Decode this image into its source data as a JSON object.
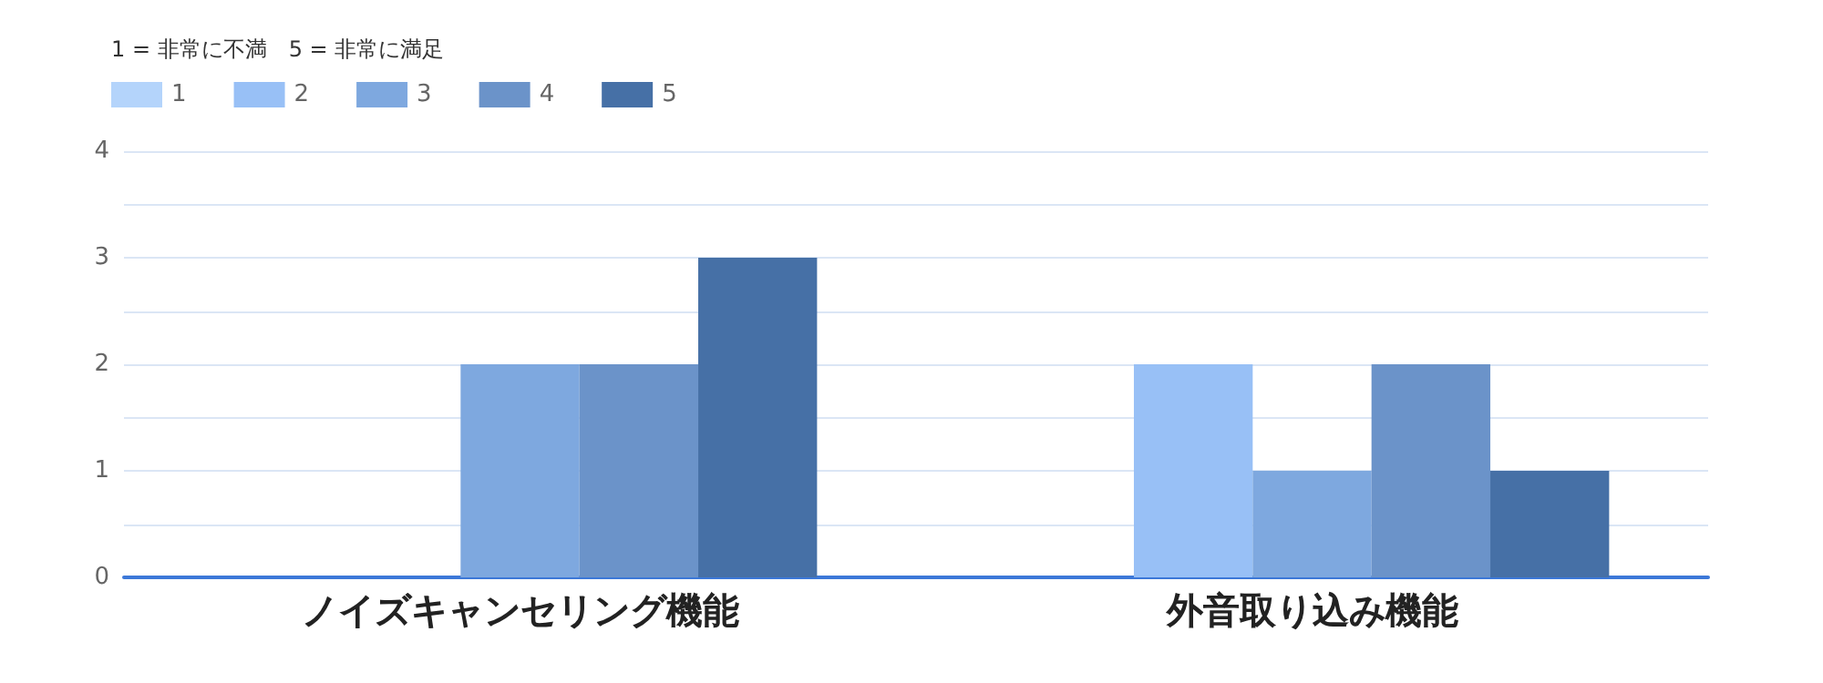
{
  "chart_data": {
    "type": "bar",
    "legend_title": "1 = 非常に不満　5 = 非常に満足",
    "categories": [
      "ノイズキャンセリング機能",
      "外音取り込み機能"
    ],
    "series": [
      {
        "name": "1",
        "color": "#b4d4fb",
        "values": [
          0,
          0
        ]
      },
      {
        "name": "2",
        "color": "#98c0f6",
        "values": [
          0,
          2
        ]
      },
      {
        "name": "3",
        "color": "#7ea8df",
        "values": [
          2,
          1
        ]
      },
      {
        "name": "4",
        "color": "#6b93c9",
        "values": [
          2,
          2
        ]
      },
      {
        "name": "5",
        "color": "#4670a6",
        "values": [
          3,
          1
        ]
      }
    ],
    "ylim": [
      0,
      4
    ],
    "yticks": [
      0,
      {
        "value": 0.5,
        "label": null
      },
      1,
      {
        "value": 1.5,
        "label": null
      },
      2,
      {
        "value": 2.5,
        "label": null
      },
      3,
      {
        "value": 3.5,
        "label": null
      },
      4
    ],
    "grid": "y",
    "legend": "top left"
  }
}
